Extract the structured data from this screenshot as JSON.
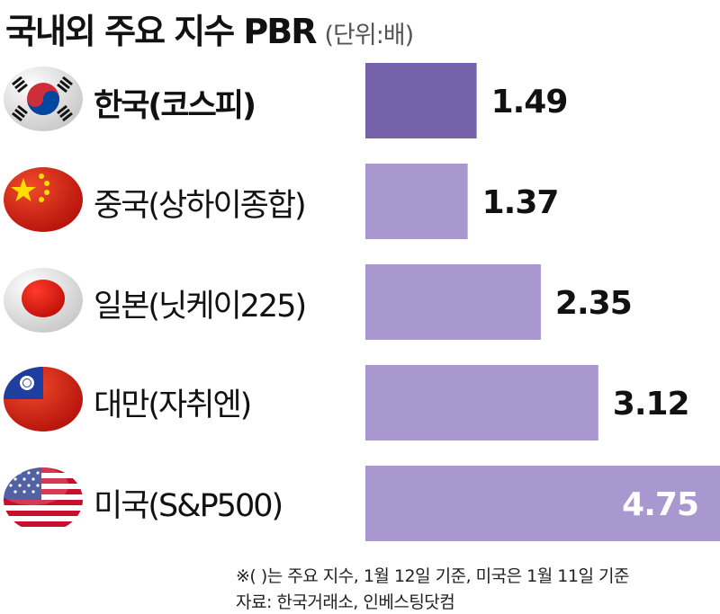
{
  "chart_data": {
    "type": "bar",
    "orientation": "horizontal",
    "title": "국내외 주요 지수 PBR",
    "unit_label": "(단위:배)",
    "categories": [
      "한국(코스피)",
      "중국(상하이종합)",
      "일본(닛케이225)",
      "대만(자취엔)",
      "미국(S&P500)"
    ],
    "values": [
      1.49,
      1.37,
      2.35,
      3.12,
      4.75
    ],
    "data_labels": [
      "1.49",
      "1.37",
      "2.35",
      "3.12",
      "4.75"
    ],
    "flag_icons": [
      "korea-flag-icon",
      "china-flag-icon",
      "japan-flag-icon",
      "taiwan-flag-icon",
      "usa-flag-icon"
    ],
    "xlim": [
      0,
      4.75
    ],
    "grid": false,
    "legend": "none",
    "colors": {
      "highlight_bar": "#7562ab",
      "bar": "#a898cf",
      "label_inside": "#ffffff",
      "label_outside": "#111111"
    }
  },
  "footnotes": {
    "note": "※( )는 주요 지수, 1월 12일 기준, 미국은 1월 11일 기준",
    "source": "자료: 한국거래소, 인베스팅닷컴"
  }
}
